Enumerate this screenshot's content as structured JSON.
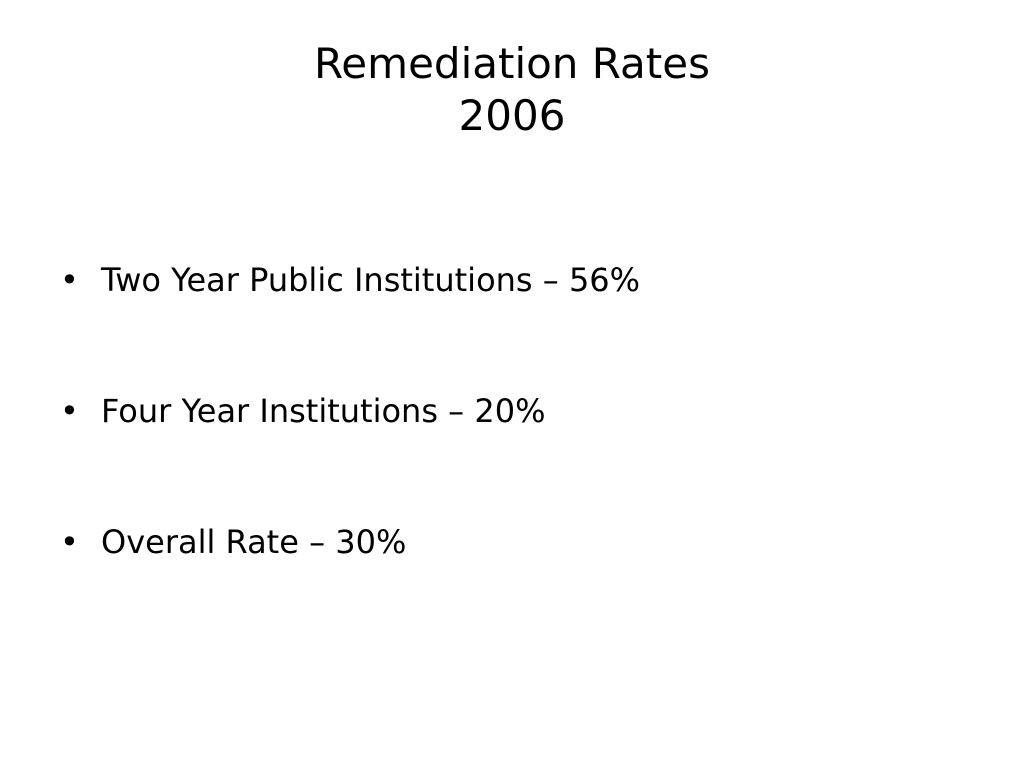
{
  "slide": {
    "title": [
      "Remediation Rates",
      "2006"
    ],
    "bullets": [
      "Two Year Public Institutions – 56%",
      "Four Year Institutions – 20%",
      "Overall Rate – 30%"
    ]
  }
}
